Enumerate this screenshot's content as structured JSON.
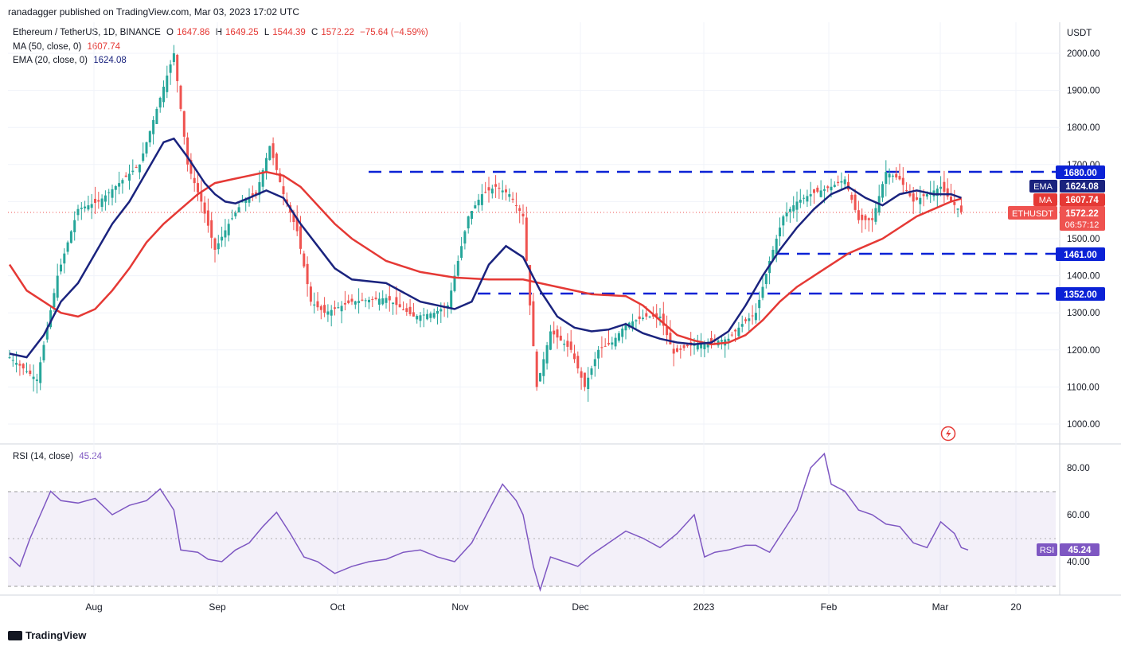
{
  "header": {
    "text": "ranadagger published on TradingView.com, Mar 03, 2023 17:02 UTC"
  },
  "legend": {
    "symbol": "Ethereum / TetherUS, 1D, BINANCE",
    "o_label": "O",
    "o": "1647.86",
    "h_label": "H",
    "h": "1649.25",
    "l_label": "L",
    "l": "1544.39",
    "c_label": "C",
    "c": "1572.22",
    "chg": "−75.64 (−4.59%)",
    "ma_label": "MA (50, close, 0)",
    "ma_value": "1607.74",
    "ema_label": "EMA (20, close, 0)",
    "ema_value": "1624.08",
    "rsi_label": "RSI (14, close)",
    "rsi_value": "45.24"
  },
  "axis": {
    "currency": "USDT",
    "price_ticks": [
      "2000.00",
      "1900.00",
      "1800.00",
      "1700.00",
      "1600.00",
      "1500.00",
      "1400.00",
      "1300.00",
      "1200.00",
      "1100.00",
      "1000.00"
    ],
    "rsi_ticks": [
      "80.00",
      "60.00",
      "40.00"
    ],
    "time_ticks": [
      "Aug",
      "Sep",
      "Oct",
      "Nov",
      "Dec",
      "2023",
      "Feb",
      "Mar",
      "20"
    ]
  },
  "price_tags": {
    "level_1680": "1680.00",
    "ema_tag": "EMA",
    "ema_val": "1624.08",
    "ma_tag": "MA",
    "ma_val": "1607.74",
    "symbol_tag": "ETHUSDT",
    "last": "1572.22",
    "countdown": "06:57:12",
    "level_1461": "1461.00",
    "level_1352": "1352.00",
    "rsi_tag": "RSI",
    "rsi_val": "45.24"
  },
  "footer": {
    "brand": "TradingView"
  },
  "colors": {
    "up": "#26a69a",
    "down": "#ef5350",
    "ema": "#1a237e",
    "ma": "#e53935",
    "rsi": "#7e57c2",
    "levels": "#0b22d6"
  },
  "chart_data": {
    "type": "candlestick",
    "title": "Ethereum / TetherUS, 1D, BINANCE",
    "ylim": [
      960,
      2060
    ],
    "x_range": [
      "2022-07-07",
      "2023-03-25"
    ],
    "horizontal_levels": [
      1680,
      1461,
      1352
    ],
    "ema20_path": [
      [
        0,
        1190
      ],
      [
        5,
        1180
      ],
      [
        10,
        1240
      ],
      [
        15,
        1330
      ],
      [
        20,
        1380
      ],
      [
        25,
        1460
      ],
      [
        30,
        1540
      ],
      [
        35,
        1600
      ],
      [
        40,
        1680
      ],
      [
        45,
        1760
      ],
      [
        48,
        1770
      ],
      [
        52,
        1720
      ],
      [
        57,
        1650
      ],
      [
        60,
        1620
      ],
      [
        63,
        1600
      ],
      [
        66,
        1595
      ],
      [
        70,
        1610
      ],
      [
        75,
        1630
      ],
      [
        80,
        1610
      ],
      [
        85,
        1540
      ],
      [
        90,
        1480
      ],
      [
        95,
        1420
      ],
      [
        100,
        1390
      ],
      [
        110,
        1380
      ],
      [
        120,
        1330
      ],
      [
        130,
        1310
      ],
      [
        135,
        1330
      ],
      [
        140,
        1430
      ],
      [
        145,
        1480
      ],
      [
        150,
        1450
      ],
      [
        155,
        1360
      ],
      [
        160,
        1290
      ],
      [
        165,
        1260
      ],
      [
        170,
        1250
      ],
      [
        175,
        1255
      ],
      [
        180,
        1270
      ],
      [
        185,
        1245
      ],
      [
        190,
        1230
      ],
      [
        195,
        1220
      ],
      [
        200,
        1215
      ],
      [
        205,
        1220
      ],
      [
        210,
        1250
      ],
      [
        215,
        1320
      ],
      [
        220,
        1400
      ],
      [
        225,
        1470
      ],
      [
        230,
        1530
      ],
      [
        235,
        1580
      ],
      [
        240,
        1620
      ],
      [
        245,
        1640
      ],
      [
        250,
        1610
      ],
      [
        255,
        1590
      ],
      [
        260,
        1620
      ],
      [
        265,
        1630
      ],
      [
        270,
        1620
      ],
      [
        275,
        1620
      ],
      [
        278,
        1610
      ]
    ],
    "ma50_path": [
      [
        0,
        1430
      ],
      [
        5,
        1360
      ],
      [
        10,
        1330
      ],
      [
        15,
        1300
      ],
      [
        20,
        1290
      ],
      [
        25,
        1310
      ],
      [
        30,
        1360
      ],
      [
        35,
        1420
      ],
      [
        40,
        1490
      ],
      [
        45,
        1540
      ],
      [
        50,
        1580
      ],
      [
        55,
        1620
      ],
      [
        60,
        1650
      ],
      [
        65,
        1660
      ],
      [
        70,
        1670
      ],
      [
        75,
        1680
      ],
      [
        80,
        1670
      ],
      [
        85,
        1640
      ],
      [
        90,
        1590
      ],
      [
        95,
        1540
      ],
      [
        100,
        1500
      ],
      [
        110,
        1440
      ],
      [
        120,
        1410
      ],
      [
        130,
        1395
      ],
      [
        140,
        1390
      ],
      [
        150,
        1390
      ],
      [
        160,
        1370
      ],
      [
        170,
        1350
      ],
      [
        180,
        1345
      ],
      [
        185,
        1320
      ],
      [
        190,
        1280
      ],
      [
        195,
        1240
      ],
      [
        200,
        1225
      ],
      [
        205,
        1215
      ],
      [
        210,
        1220
      ],
      [
        215,
        1240
      ],
      [
        220,
        1280
      ],
      [
        225,
        1330
      ],
      [
        230,
        1370
      ],
      [
        235,
        1400
      ],
      [
        240,
        1430
      ],
      [
        245,
        1460
      ],
      [
        250,
        1480
      ],
      [
        255,
        1500
      ],
      [
        260,
        1530
      ],
      [
        265,
        1560
      ],
      [
        270,
        1580
      ],
      [
        275,
        1600
      ],
      [
        278,
        1608
      ]
    ],
    "rsi_path": [
      [
        0,
        42
      ],
      [
        3,
        38
      ],
      [
        6,
        50
      ],
      [
        9,
        60
      ],
      [
        12,
        70
      ],
      [
        15,
        66
      ],
      [
        20,
        65
      ],
      [
        25,
        67
      ],
      [
        30,
        60
      ],
      [
        35,
        64
      ],
      [
        40,
        66
      ],
      [
        44,
        71
      ],
      [
        48,
        62
      ],
      [
        50,
        45
      ],
      [
        55,
        44
      ],
      [
        58,
        41
      ],
      [
        62,
        40
      ],
      [
        66,
        45
      ],
      [
        70,
        48
      ],
      [
        74,
        55
      ],
      [
        78,
        61
      ],
      [
        82,
        52
      ],
      [
        86,
        42
      ],
      [
        90,
        40
      ],
      [
        95,
        35
      ],
      [
        100,
        38
      ],
      [
        105,
        40
      ],
      [
        110,
        41
      ],
      [
        115,
        44
      ],
      [
        120,
        45
      ],
      [
        125,
        42
      ],
      [
        130,
        40
      ],
      [
        135,
        48
      ],
      [
        140,
        62
      ],
      [
        144,
        73
      ],
      [
        148,
        66
      ],
      [
        150,
        60
      ],
      [
        153,
        38
      ],
      [
        155,
        28
      ],
      [
        158,
        42
      ],
      [
        162,
        40
      ],
      [
        166,
        38
      ],
      [
        170,
        43
      ],
      [
        175,
        48
      ],
      [
        180,
        53
      ],
      [
        185,
        50
      ],
      [
        190,
        46
      ],
      [
        195,
        52
      ],
      [
        200,
        60
      ],
      [
        203,
        42
      ],
      [
        206,
        44
      ],
      [
        210,
        45
      ],
      [
        215,
        47
      ],
      [
        218,
        47
      ],
      [
        222,
        44
      ],
      [
        226,
        53
      ],
      [
        230,
        62
      ],
      [
        234,
        80
      ],
      [
        238,
        86
      ],
      [
        240,
        73
      ],
      [
        244,
        70
      ],
      [
        248,
        62
      ],
      [
        252,
        60
      ],
      [
        256,
        56
      ],
      [
        260,
        55
      ],
      [
        264,
        48
      ],
      [
        268,
        46
      ],
      [
        272,
        57
      ],
      [
        276,
        52
      ],
      [
        278,
        46
      ],
      [
        280,
        45
      ]
    ]
  }
}
